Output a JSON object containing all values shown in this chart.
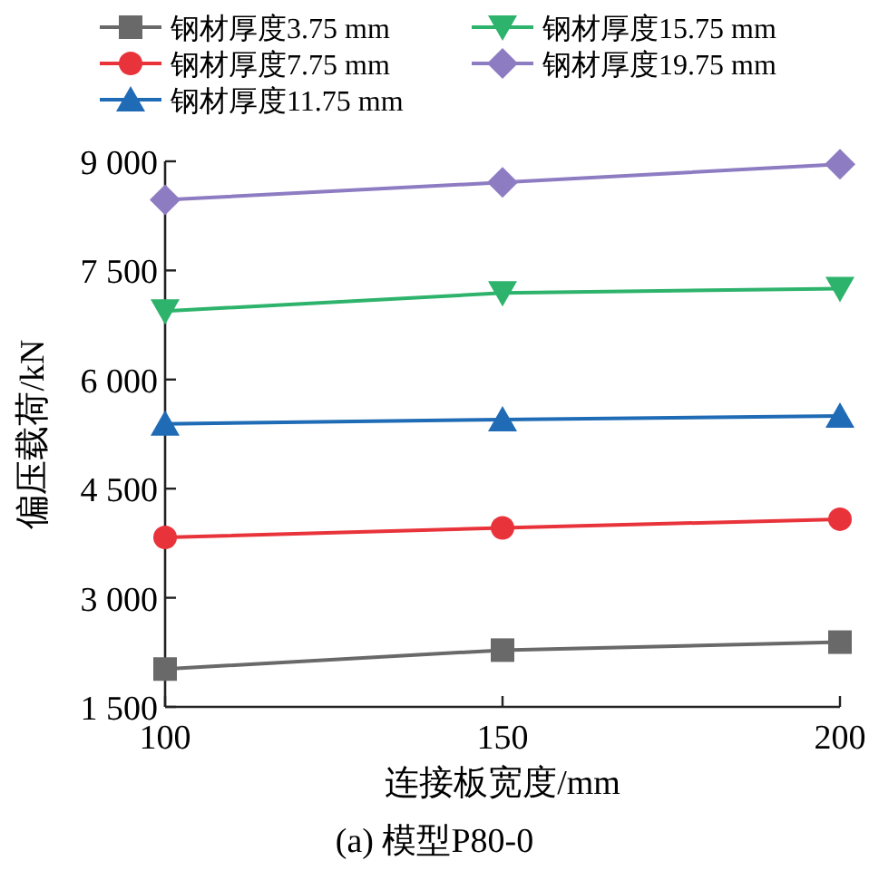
{
  "chart_data": {
    "type": "line",
    "xlabel": "连接板宽度/mm",
    "ylabel": "偏压载荷/kN",
    "x": [
      100,
      150,
      200
    ],
    "xlim": [
      100,
      200
    ],
    "xticks": [
      100,
      150,
      200
    ],
    "ylim": [
      1500,
      9000
    ],
    "yticks": [
      {
        "value": 1500,
        "label": "1 500"
      },
      {
        "value": 3000,
        "label": "3 000"
      },
      {
        "value": 4500,
        "label": "4 500"
      },
      {
        "value": 6000,
        "label": "6 000"
      },
      {
        "value": 7500,
        "label": "7 500"
      },
      {
        "value": 9000,
        "label": "9 000"
      }
    ],
    "series": [
      {
        "name": "钢材厚度3.75 mm",
        "color": "#696969",
        "marker": "square",
        "values": [
          2020,
          2280,
          2390
        ]
      },
      {
        "name": "钢材厚度7.75 mm",
        "color": "#e8333a",
        "marker": "circle",
        "values": [
          3830,
          3960,
          4080
        ]
      },
      {
        "name": "钢材厚度11.75 mm",
        "color": "#1f6bb5",
        "marker": "triangle",
        "values": [
          5390,
          5450,
          5500
        ]
      },
      {
        "name": "钢材厚度15.75 mm",
        "color": "#2db36b",
        "marker": "triangle-down",
        "values": [
          6940,
          7190,
          7250
        ]
      },
      {
        "name": "钢材厚度19.75 mm",
        "color": "#8e7cc3",
        "marker": "diamond",
        "values": [
          8470,
          8710,
          8960
        ]
      }
    ],
    "legend": "top",
    "grid": false,
    "line_style": "solid",
    "annotations": [
      "(a) 模型P80-0"
    ]
  }
}
